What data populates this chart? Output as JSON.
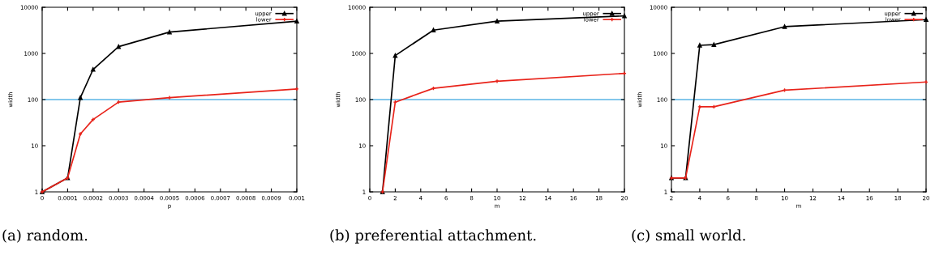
{
  "chart_data": [
    {
      "type": "line",
      "xlabel": "p",
      "ylabel": "width",
      "log": "y",
      "grid": false,
      "legend": "top right",
      "xlim": [
        0,
        0.001
      ],
      "xticks": [
        0,
        0.0001,
        0.0002,
        0.0003,
        0.0004,
        0.0005,
        0.0006,
        0.0007,
        0.0008,
        0.0009,
        0.001
      ],
      "ylim": [
        1,
        10000
      ],
      "yticks": [
        1,
        10,
        100,
        1000,
        10000
      ],
      "x": [
        0,
        0.0001,
        0.00015,
        0.0002,
        0.0003,
        0.0005,
        0.001
      ],
      "series": [
        {
          "name": "upper",
          "color": "#000000",
          "marker": "triangle",
          "values": [
            1,
            2,
            110,
            450,
            1400,
            2900,
            5000
          ]
        },
        {
          "name": "lower",
          "color": "#e8231a",
          "marker": "cross",
          "values": [
            1,
            2,
            18,
            37,
            88,
            110,
            170
          ]
        }
      ],
      "ref_lines": [
        {
          "axis": "y",
          "value": 100,
          "color": "#5ab4e5"
        }
      ],
      "annotations": [
        "(a) random."
      ]
    },
    {
      "type": "line",
      "xlabel": "m",
      "ylabel": "width",
      "log": "y",
      "grid": false,
      "legend": "top right",
      "xlim": [
        0,
        20
      ],
      "xticks": [
        0,
        2,
        4,
        6,
        8,
        10,
        12,
        14,
        16,
        18,
        20
      ],
      "ylim": [
        1,
        10000
      ],
      "yticks": [
        1,
        10,
        100,
        1000,
        10000
      ],
      "x": [
        1,
        2,
        5,
        10,
        20
      ],
      "series": [
        {
          "name": "upper",
          "color": "#000000",
          "marker": "triangle",
          "values": [
            1,
            900,
            3200,
            5000,
            6500
          ]
        },
        {
          "name": "lower",
          "color": "#e8231a",
          "marker": "cross",
          "values": [
            1,
            88,
            175,
            250,
            370
          ]
        }
      ],
      "ref_lines": [
        {
          "axis": "y",
          "value": 100,
          "color": "#5ab4e5"
        }
      ],
      "annotations": [
        "(b) preferential attachment."
      ]
    },
    {
      "type": "line",
      "xlabel": "m",
      "ylabel": "width",
      "log": "y",
      "grid": false,
      "legend": "top right",
      "xlim": [
        2,
        20
      ],
      "xticks": [
        2,
        4,
        6,
        8,
        10,
        12,
        14,
        16,
        18,
        20
      ],
      "ylim": [
        1,
        10000
      ],
      "yticks": [
        1,
        10,
        100,
        1000,
        10000
      ],
      "x": [
        2,
        3,
        4,
        5,
        10,
        20
      ],
      "series": [
        {
          "name": "upper",
          "color": "#000000",
          "marker": "triangle",
          "values": [
            2,
            2,
            1500,
            1550,
            3800,
            5400
          ]
        },
        {
          "name": "lower",
          "color": "#e8231a",
          "marker": "cross",
          "values": [
            2,
            2,
            70,
            70,
            160,
            240
          ]
        }
      ],
      "ref_lines": [
        {
          "axis": "y",
          "value": 100,
          "color": "#5ab4e5"
        }
      ],
      "annotations": [
        "(c) small world."
      ]
    }
  ]
}
